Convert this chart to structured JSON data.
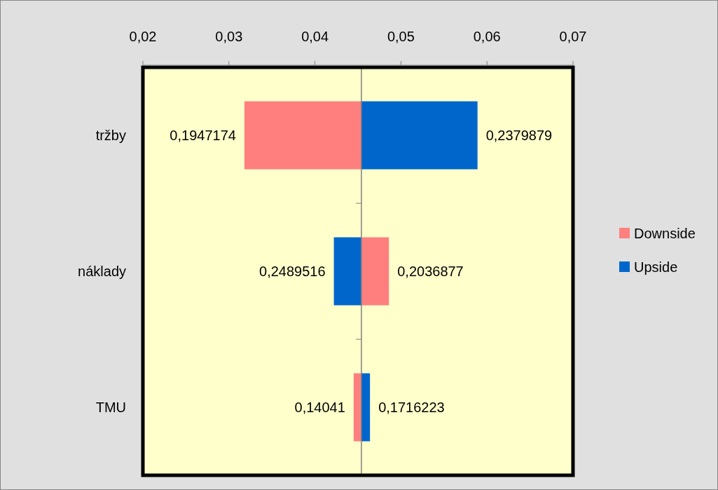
{
  "chart_data": {
    "type": "bar",
    "orientation": "horizontal",
    "categories": [
      "tržby",
      "náklady",
      "TMU"
    ],
    "series": [
      {
        "name": "Downside",
        "color": "#ff7f7f",
        "base": [
          0.0318,
          0.0454,
          0.0445
        ],
        "values": [
          0.0136,
          0.0032,
          0.0009
        ]
      },
      {
        "name": "Upside",
        "color": "#0066cc",
        "base": [
          0.0454,
          0.0422,
          0.0454
        ],
        "values": [
          0.0135,
          0.0032,
          0.001
        ]
      }
    ],
    "annotations": [
      {
        "text": "0,1947174",
        "x": 0.0318,
        "y": "tržby"
      },
      {
        "text": "0,2379879",
        "x": 0.0589,
        "y": "tržby"
      },
      {
        "text": "0,2489516",
        "x": 0.0422,
        "y": "náklady"
      },
      {
        "text": "0,2036877",
        "x": 0.0486,
        "y": "náklady"
      },
      {
        "text": "0,14041",
        "x": 0.0445,
        "y": "TMU"
      },
      {
        "text": "0,1716223",
        "x": 0.0464,
        "y": "TMU"
      }
    ],
    "xlim": [
      0.02,
      0.07
    ],
    "xticks": [
      {
        "value": 0.02,
        "label": "0,02"
      },
      {
        "value": 0.03,
        "label": "0,03"
      },
      {
        "value": 0.04,
        "label": "0,04"
      },
      {
        "value": 0.05,
        "label": "0,05"
      },
      {
        "value": 0.06,
        "label": "0,06"
      },
      {
        "value": 0.07,
        "label": "0,07"
      }
    ],
    "ref_lines": [
      {
        "axis": "x",
        "value": 0.0454,
        "color": "#808080"
      }
    ],
    "grid": false,
    "legend": "right"
  }
}
